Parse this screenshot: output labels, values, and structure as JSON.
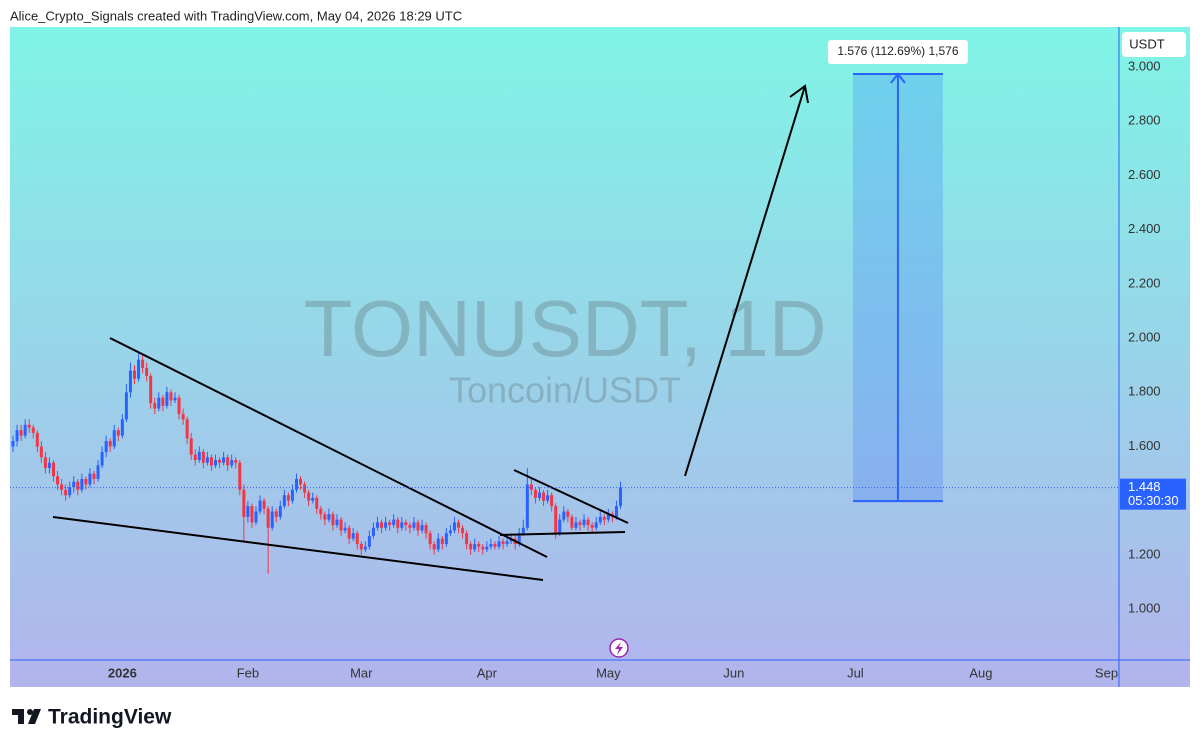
{
  "header": "Alice_Crypto_Signals created with TradingView.com, May 04, 2026 18:29 UTC",
  "logo": "TradingView",
  "chart_data": {
    "type": "candlestick",
    "title": "TONUSDT, 1D",
    "subtitle": "Toncoin/USDT",
    "y_unit": "USDT",
    "up_color": "#2962ff",
    "down_color": "#f23645",
    "xlim": [
      -0.74,
      272.84
    ],
    "ylim": [
      0.812,
      3.148
    ],
    "xticks": [
      {
        "value": 27,
        "label": "2026"
      },
      {
        "value": 58,
        "label": "Feb"
      },
      {
        "value": 86,
        "label": "Mar"
      },
      {
        "value": 117,
        "label": "Apr"
      },
      {
        "value": 147,
        "label": "May"
      },
      {
        "value": 178,
        "label": "Jun"
      },
      {
        "value": 208,
        "label": "Jul"
      },
      {
        "value": 239,
        "label": "Aug"
      },
      {
        "value": 270,
        "label": "Sep"
      }
    ],
    "yticks": [
      {
        "value": 1,
        "label": "1.000"
      },
      {
        "value": 1.2,
        "label": "1.200"
      },
      {
        "value": 1.4,
        "label": "1.400"
      },
      {
        "value": 1.6,
        "label": "1.600"
      },
      {
        "value": 1.8,
        "label": "1.800"
      },
      {
        "value": 2,
        "label": "2.000"
      },
      {
        "value": 2.2,
        "label": "2.200"
      },
      {
        "value": 2.4,
        "label": "2.400"
      },
      {
        "value": 2.6,
        "label": "2.600"
      },
      {
        "value": 2.8,
        "label": "2.800"
      },
      {
        "value": 3,
        "label": "3.000"
      }
    ],
    "last_price": 1.448,
    "countdown": "05:30:30",
    "range": {
      "from": 1.3985,
      "to": 2.9745,
      "x_from": 207.4,
      "x_to": 229.6,
      "label": "1.576 (112.69%) 1,576"
    },
    "candles": [
      [
        1.6,
        1.64,
        1.58,
        1.62
      ],
      [
        1.62,
        1.68,
        1.6,
        1.66
      ],
      [
        1.66,
        1.68,
        1.62,
        1.64
      ],
      [
        1.64,
        1.7,
        1.63,
        1.68
      ],
      [
        1.68,
        1.7,
        1.65,
        1.67
      ],
      [
        1.67,
        1.68,
        1.63,
        1.65
      ],
      [
        1.65,
        1.66,
        1.58,
        1.6
      ],
      [
        1.6,
        1.62,
        1.54,
        1.56
      ],
      [
        1.56,
        1.58,
        1.5,
        1.52
      ],
      [
        1.52,
        1.56,
        1.5,
        1.54
      ],
      [
        1.54,
        1.55,
        1.47,
        1.49
      ],
      [
        1.49,
        1.51,
        1.44,
        1.46
      ],
      [
        1.46,
        1.48,
        1.42,
        1.44
      ],
      [
        1.44,
        1.46,
        1.4,
        1.42
      ],
      [
        1.42,
        1.47,
        1.41,
        1.45
      ],
      [
        1.45,
        1.49,
        1.43,
        1.47
      ],
      [
        1.47,
        1.48,
        1.42,
        1.44
      ],
      [
        1.44,
        1.5,
        1.43,
        1.48
      ],
      [
        1.48,
        1.49,
        1.44,
        1.46
      ],
      [
        1.46,
        1.52,
        1.45,
        1.5
      ],
      [
        1.5,
        1.51,
        1.46,
        1.48
      ],
      [
        1.48,
        1.55,
        1.47,
        1.53
      ],
      [
        1.53,
        1.6,
        1.52,
        1.58
      ],
      [
        1.58,
        1.64,
        1.56,
        1.62
      ],
      [
        1.62,
        1.63,
        1.58,
        1.6
      ],
      [
        1.6,
        1.68,
        1.59,
        1.66
      ],
      [
        1.66,
        1.67,
        1.62,
        1.64
      ],
      [
        1.64,
        1.72,
        1.63,
        1.7
      ],
      [
        1.7,
        1.83,
        1.69,
        1.8
      ],
      [
        1.8,
        1.91,
        1.78,
        1.88
      ],
      [
        1.88,
        1.9,
        1.83,
        1.85
      ],
      [
        1.85,
        1.95,
        1.84,
        1.92
      ],
      [
        1.92,
        1.94,
        1.87,
        1.89
      ],
      [
        1.89,
        1.91,
        1.84,
        1.86
      ],
      [
        1.86,
        1.87,
        1.74,
        1.76
      ],
      [
        1.76,
        1.78,
        1.72,
        1.74
      ],
      [
        1.74,
        1.8,
        1.73,
        1.78
      ],
      [
        1.78,
        1.79,
        1.73,
        1.75
      ],
      [
        1.75,
        1.82,
        1.74,
        1.8
      ],
      [
        1.8,
        1.81,
        1.75,
        1.77
      ],
      [
        1.77,
        1.8,
        1.76,
        1.78
      ],
      [
        1.78,
        1.79,
        1.7,
        1.72
      ],
      [
        1.72,
        1.74,
        1.68,
        1.7
      ],
      [
        1.7,
        1.71,
        1.61,
        1.63
      ],
      [
        1.63,
        1.65,
        1.55,
        1.57
      ],
      [
        1.57,
        1.59,
        1.53,
        1.55
      ],
      [
        1.55,
        1.6,
        1.54,
        1.58
      ],
      [
        1.58,
        1.59,
        1.52,
        1.54
      ],
      [
        1.54,
        1.58,
        1.53,
        1.56
      ],
      [
        1.56,
        1.57,
        1.51,
        1.53
      ],
      [
        1.53,
        1.57,
        1.52,
        1.55
      ],
      [
        1.55,
        1.56,
        1.52,
        1.54
      ],
      [
        1.54,
        1.58,
        1.53,
        1.56
      ],
      [
        1.56,
        1.57,
        1.51,
        1.53
      ],
      [
        1.53,
        1.57,
        1.52,
        1.55
      ],
      [
        1.55,
        1.56,
        1.52,
        1.54
      ],
      [
        1.54,
        1.55,
        1.42,
        1.44
      ],
      [
        1.44,
        1.46,
        1.25,
        1.34
      ],
      [
        1.34,
        1.4,
        1.32,
        1.38
      ],
      [
        1.38,
        1.39,
        1.3,
        1.32
      ],
      [
        1.32,
        1.38,
        1.31,
        1.36
      ],
      [
        1.36,
        1.42,
        1.35,
        1.4
      ],
      [
        1.4,
        1.41,
        1.35,
        1.37
      ],
      [
        1.37,
        1.38,
        1.13,
        1.3
      ],
      [
        1.3,
        1.38,
        1.29,
        1.36
      ],
      [
        1.36,
        1.37,
        1.32,
        1.34
      ],
      [
        1.34,
        1.4,
        1.33,
        1.38
      ],
      [
        1.38,
        1.44,
        1.37,
        1.42
      ],
      [
        1.42,
        1.43,
        1.38,
        1.4
      ],
      [
        1.4,
        1.46,
        1.39,
        1.44
      ],
      [
        1.44,
        1.5,
        1.43,
        1.48
      ],
      [
        1.48,
        1.49,
        1.44,
        1.46
      ],
      [
        1.46,
        1.47,
        1.41,
        1.43
      ],
      [
        1.43,
        1.44,
        1.38,
        1.4
      ],
      [
        1.4,
        1.43,
        1.39,
        1.41
      ],
      [
        1.41,
        1.42,
        1.35,
        1.37
      ],
      [
        1.37,
        1.38,
        1.33,
        1.35
      ],
      [
        1.35,
        1.36,
        1.31,
        1.33
      ],
      [
        1.33,
        1.37,
        1.32,
        1.35
      ],
      [
        1.35,
        1.36,
        1.29,
        1.31
      ],
      [
        1.31,
        1.35,
        1.3,
        1.33
      ],
      [
        1.33,
        1.34,
        1.27,
        1.29
      ],
      [
        1.29,
        1.32,
        1.28,
        1.3
      ],
      [
        1.3,
        1.31,
        1.24,
        1.26
      ],
      [
        1.26,
        1.3,
        1.25,
        1.28
      ],
      [
        1.28,
        1.29,
        1.22,
        1.24
      ],
      [
        1.24,
        1.25,
        1.2,
        1.22
      ],
      [
        1.22,
        1.25,
        1.21,
        1.23
      ],
      [
        1.23,
        1.29,
        1.22,
        1.27
      ],
      [
        1.27,
        1.32,
        1.26,
        1.3
      ],
      [
        1.3,
        1.34,
        1.29,
        1.32
      ],
      [
        1.32,
        1.33,
        1.28,
        1.3
      ],
      [
        1.3,
        1.34,
        1.29,
        1.32
      ],
      [
        1.32,
        1.33,
        1.29,
        1.31
      ],
      [
        1.31,
        1.35,
        1.3,
        1.33
      ],
      [
        1.33,
        1.34,
        1.28,
        1.3
      ],
      [
        1.3,
        1.34,
        1.29,
        1.32
      ],
      [
        1.32,
        1.33,
        1.29,
        1.31
      ],
      [
        1.31,
        1.32,
        1.28,
        1.3
      ],
      [
        1.3,
        1.34,
        1.29,
        1.32
      ],
      [
        1.32,
        1.33,
        1.27,
        1.29
      ],
      [
        1.29,
        1.33,
        1.28,
        1.31
      ],
      [
        1.31,
        1.32,
        1.26,
        1.28
      ],
      [
        1.28,
        1.29,
        1.22,
        1.24
      ],
      [
        1.24,
        1.25,
        1.2,
        1.22
      ],
      [
        1.22,
        1.28,
        1.21,
        1.26
      ],
      [
        1.26,
        1.27,
        1.22,
        1.24
      ],
      [
        1.24,
        1.3,
        1.23,
        1.28
      ],
      [
        1.28,
        1.31,
        1.27,
        1.29
      ],
      [
        1.29,
        1.34,
        1.28,
        1.32
      ],
      [
        1.32,
        1.33,
        1.28,
        1.3
      ],
      [
        1.3,
        1.31,
        1.26,
        1.28
      ],
      [
        1.28,
        1.29,
        1.22,
        1.24
      ],
      [
        1.24,
        1.25,
        1.2,
        1.22
      ],
      [
        1.22,
        1.26,
        1.21,
        1.24
      ],
      [
        1.24,
        1.25,
        1.21,
        1.23
      ],
      [
        1.23,
        1.24,
        1.2,
        1.22
      ],
      [
        1.22,
        1.25,
        1.21,
        1.23
      ],
      [
        1.23,
        1.26,
        1.22,
        1.24
      ],
      [
        1.24,
        1.25,
        1.22,
        1.23
      ],
      [
        1.23,
        1.27,
        1.22,
        1.25
      ],
      [
        1.25,
        1.26,
        1.22,
        1.24
      ],
      [
        1.24,
        1.27,
        1.23,
        1.25
      ],
      [
        1.25,
        1.28,
        1.24,
        1.26
      ],
      [
        1.26,
        1.27,
        1.22,
        1.24
      ],
      [
        1.24,
        1.3,
        1.23,
        1.28
      ],
      [
        1.28,
        1.33,
        1.27,
        1.3
      ],
      [
        1.3,
        1.52,
        1.29,
        1.46
      ],
      [
        1.46,
        1.48,
        1.42,
        1.44
      ],
      [
        1.44,
        1.45,
        1.39,
        1.41
      ],
      [
        1.41,
        1.45,
        1.4,
        1.43
      ],
      [
        1.43,
        1.44,
        1.38,
        1.4
      ],
      [
        1.4,
        1.44,
        1.39,
        1.42
      ],
      [
        1.42,
        1.43,
        1.36,
        1.38
      ],
      [
        1.38,
        1.39,
        1.26,
        1.28
      ],
      [
        1.28,
        1.35,
        1.27,
        1.33
      ],
      [
        1.33,
        1.38,
        1.32,
        1.36
      ],
      [
        1.36,
        1.37,
        1.32,
        1.34
      ],
      [
        1.34,
        1.35,
        1.29,
        1.3
      ],
      [
        1.3,
        1.34,
        1.29,
        1.32
      ],
      [
        1.32,
        1.33,
        1.29,
        1.31
      ],
      [
        1.31,
        1.35,
        1.3,
        1.33
      ],
      [
        1.33,
        1.34,
        1.29,
        1.31
      ],
      [
        1.31,
        1.32,
        1.28,
        1.3
      ],
      [
        1.3,
        1.34,
        1.29,
        1.32
      ],
      [
        1.32,
        1.36,
        1.31,
        1.34
      ],
      [
        1.34,
        1.35,
        1.31,
        1.33
      ],
      [
        1.33,
        1.37,
        1.32,
        1.35
      ],
      [
        1.35,
        1.36,
        1.32,
        1.34
      ],
      [
        1.34,
        1.4,
        1.33,
        1.38
      ],
      [
        1.38,
        1.47,
        1.37,
        1.448
      ]
    ]
  }
}
